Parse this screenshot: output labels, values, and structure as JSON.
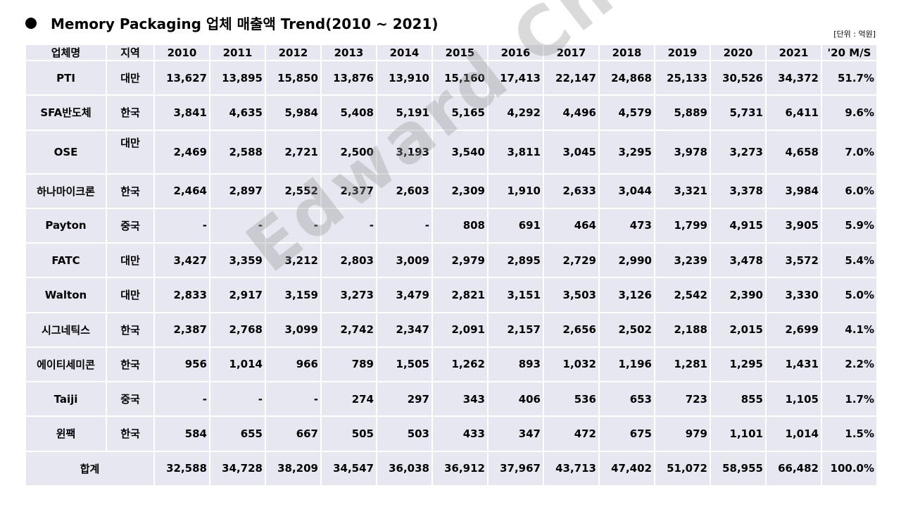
{
  "title": "Memory Packaging 업체 매출액 Trend(2010 ~ 2021)",
  "unit": "[단위 : 억원]",
  "watermark": "Edward Choi",
  "headers": [
    "업체명",
    "지역",
    "2010",
    "2011",
    "2012",
    "2013",
    "2014",
    "2015",
    "2016",
    "2017",
    "2018",
    "2019",
    "2020",
    "2021",
    "'20 M/S"
  ],
  "rows": [
    {
      "name": "PTI",
      "region": "대만",
      "values": [
        "13,627",
        "13,895",
        "15,850",
        "13,876",
        "13,910",
        "15,160",
        "17,413",
        "22,147",
        "24,868",
        "25,133",
        "30,526",
        "34,372"
      ],
      "ms": "51.7%"
    },
    {
      "name": "SFA반도체",
      "region": "한국",
      "values": [
        "3,841",
        "4,635",
        "5,984",
        "5,408",
        "5,191",
        "5,165",
        "4,292",
        "4,496",
        "4,579",
        "5,889",
        "5,731",
        "6,411"
      ],
      "ms": "9.6%"
    },
    {
      "name": "OSE",
      "region": "대만",
      "values": [
        "2,469",
        "2,588",
        "2,721",
        "2,500",
        "3,193",
        "3,540",
        "3,811",
        "3,045",
        "3,295",
        "3,978",
        "3,273",
        "4,658"
      ],
      "ms": "7.0%"
    },
    {
      "name": "하나마이크론",
      "region": "한국",
      "values": [
        "2,464",
        "2,897",
        "2,552",
        "2,377",
        "2,603",
        "2,309",
        "1,910",
        "2,633",
        "3,044",
        "3,321",
        "3,378",
        "3,984"
      ],
      "ms": "6.0%"
    },
    {
      "name": "Payton",
      "region": "중국",
      "values": [
        "-",
        "-",
        "-",
        "-",
        "-",
        "808",
        "691",
        "464",
        "473",
        "1,799",
        "4,915",
        "3,905"
      ],
      "ms": "5.9%"
    },
    {
      "name": "FATC",
      "region": "대만",
      "values": [
        "3,427",
        "3,359",
        "3,212",
        "2,803",
        "3,009",
        "2,979",
        "2,895",
        "2,729",
        "2,990",
        "3,239",
        "3,478",
        "3,572"
      ],
      "ms": "5.4%"
    },
    {
      "name": "Walton",
      "region": "대만",
      "values": [
        "2,833",
        "2,917",
        "3,159",
        "3,273",
        "3,479",
        "2,821",
        "3,151",
        "3,503",
        "3,126",
        "2,542",
        "2,390",
        "3,330"
      ],
      "ms": "5.0%"
    },
    {
      "name": "시그네틱스",
      "region": "한국",
      "values": [
        "2,387",
        "2,768",
        "3,099",
        "2,742",
        "2,347",
        "2,091",
        "2,157",
        "2,656",
        "2,502",
        "2,188",
        "2,015",
        "2,699"
      ],
      "ms": "4.1%"
    },
    {
      "name": "에이티세미콘",
      "region": "한국",
      "values": [
        "956",
        "1,014",
        "966",
        "789",
        "1,505",
        "1,262",
        "893",
        "1,032",
        "1,196",
        "1,281",
        "1,295",
        "1,431"
      ],
      "ms": "2.2%"
    },
    {
      "name": "Taiji",
      "region": "중국",
      "values": [
        "-",
        "-",
        "-",
        "274",
        "297",
        "343",
        "406",
        "536",
        "653",
        "723",
        "855",
        "1,105"
      ],
      "ms": "1.7%"
    },
    {
      "name": "윈팩",
      "region": "한국",
      "values": [
        "584",
        "655",
        "667",
        "505",
        "503",
        "433",
        "347",
        "472",
        "675",
        "979",
        "1,101",
        "1,014"
      ],
      "ms": "1.5%"
    }
  ],
  "total": {
    "label": "합계",
    "values": [
      "32,588",
      "34,728",
      "38,209",
      "34,547",
      "36,038",
      "36,912",
      "37,967",
      "43,713",
      "47,402",
      "51,072",
      "58,955",
      "66,482"
    ],
    "ms": "100.0%"
  }
}
